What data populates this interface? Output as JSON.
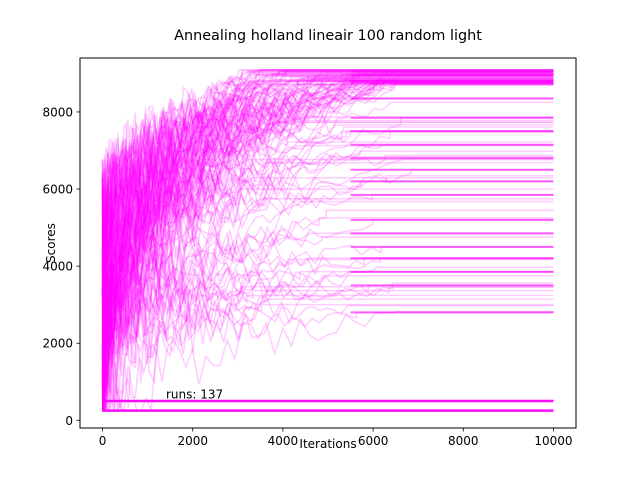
{
  "chart_data": {
    "type": "line",
    "title": "Annealing holland lineair 100 random light",
    "xlabel": "Iterations",
    "ylabel": "Scores",
    "annotation": "runs: 137",
    "runs": 137,
    "iterations": 10000,
    "xlim": [
      -500,
      10500
    ],
    "ylim": [
      -200,
      9400
    ],
    "xticks": [
      0,
      2000,
      4000,
      6000,
      8000,
      10000
    ],
    "yticks": [
      0,
      2000,
      4000,
      6000,
      8000
    ],
    "color": "#ff00ff",
    "final_score_levels": [
      9050,
      8950,
      8800,
      8750,
      8350,
      7850,
      7500,
      7150,
      6800,
      6500,
      6200,
      5850,
      5200,
      4850,
      4500,
      4200,
      3850,
      3500,
      2800,
      500,
      250
    ],
    "grid": false,
    "legend": "none"
  }
}
